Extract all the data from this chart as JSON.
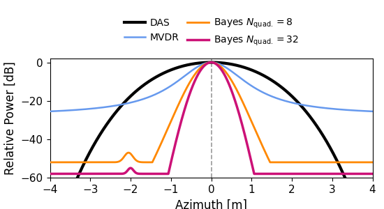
{
  "xlim": [
    -4,
    4
  ],
  "ylim": [
    -60,
    2
  ],
  "xlabel": "Azimuth [m]",
  "ylabel": "Relative Power [dB]",
  "xticks": [
    -4,
    -3,
    -2,
    -1,
    0,
    1,
    2,
    3,
    4
  ],
  "yticks": [
    0,
    -20,
    -40,
    -60
  ],
  "colors": {
    "DAS": "#000000",
    "MVDR": "#6699ee",
    "Bayes8": "#ff8800",
    "Bayes32": "#cc1177"
  },
  "linewidths": {
    "DAS": 3.0,
    "MVDR": 1.8,
    "Bayes8": 2.0,
    "Bayes32": 2.5
  }
}
